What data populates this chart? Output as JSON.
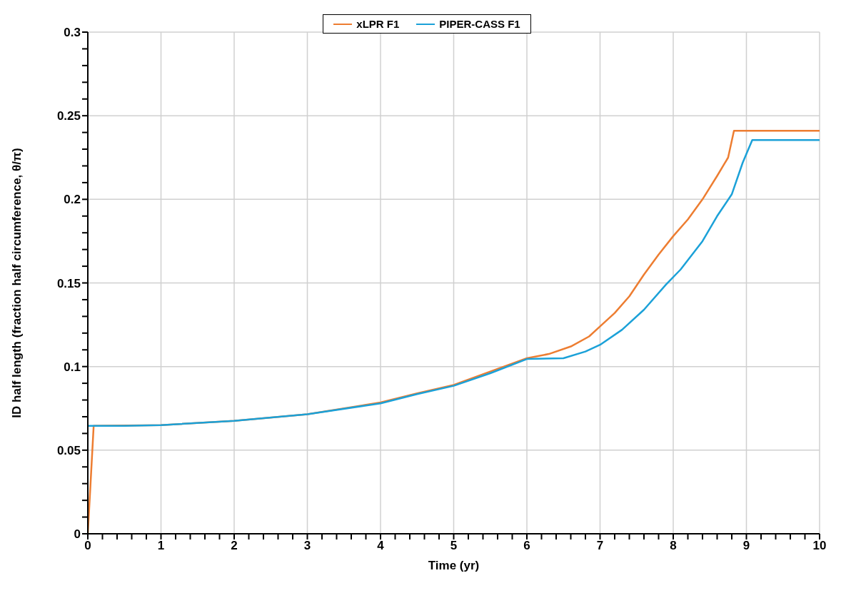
{
  "chart_data": {
    "type": "line",
    "xlabel": "Time (yr)",
    "ylabel": "ID half length (fraction half circumference, θ/π)",
    "xlim": [
      0,
      10
    ],
    "ylim": [
      0,
      0.3
    ],
    "xticks": [
      0,
      {
        "value": 0.2,
        "label": null
      },
      {
        "value": 0.4,
        "label": null
      },
      {
        "value": 0.6,
        "label": null
      },
      {
        "value": 0.8,
        "label": null
      },
      1,
      {
        "value": 1.2,
        "label": null
      },
      {
        "value": 1.4,
        "label": null
      },
      {
        "value": 1.6,
        "label": null
      },
      {
        "value": 1.8,
        "label": null
      },
      2,
      {
        "value": 2.2,
        "label": null
      },
      {
        "value": 2.4,
        "label": null
      },
      {
        "value": 2.6,
        "label": null
      },
      {
        "value": 2.8,
        "label": null
      },
      3,
      {
        "value": 3.2,
        "label": null
      },
      {
        "value": 3.4,
        "label": null
      },
      {
        "value": 3.6,
        "label": null
      },
      {
        "value": 3.8,
        "label": null
      },
      4,
      {
        "value": 4.2,
        "label": null
      },
      {
        "value": 4.4,
        "label": null
      },
      {
        "value": 4.6,
        "label": null
      },
      {
        "value": 4.8,
        "label": null
      },
      5,
      {
        "value": 5.2,
        "label": null
      },
      {
        "value": 5.4,
        "label": null
      },
      {
        "value": 5.6,
        "label": null
      },
      {
        "value": 5.8,
        "label": null
      },
      6,
      {
        "value": 6.2,
        "label": null
      },
      {
        "value": 6.4,
        "label": null
      },
      {
        "value": 6.6,
        "label": null
      },
      {
        "value": 6.8,
        "label": null
      },
      7,
      {
        "value": 7.2,
        "label": null
      },
      {
        "value": 7.4,
        "label": null
      },
      {
        "value": 7.6,
        "label": null
      },
      {
        "value": 7.8,
        "label": null
      },
      8,
      {
        "value": 8.2,
        "label": null
      },
      {
        "value": 8.4,
        "label": null
      },
      {
        "value": 8.6,
        "label": null
      },
      {
        "value": 8.8,
        "label": null
      },
      9,
      {
        "value": 9.2,
        "label": null
      },
      {
        "value": 9.4,
        "label": null
      },
      {
        "value": 9.6,
        "label": null
      },
      {
        "value": 9.8,
        "label": null
      },
      10
    ],
    "yticks": [
      0,
      {
        "value": 0.01,
        "label": null
      },
      {
        "value": 0.02,
        "label": null
      },
      {
        "value": 0.03,
        "label": null
      },
      {
        "value": 0.04,
        "label": null
      },
      0.05,
      {
        "value": 0.06,
        "label": null
      },
      {
        "value": 0.07,
        "label": null
      },
      {
        "value": 0.08,
        "label": null
      },
      {
        "value": 0.09,
        "label": null
      },
      0.1,
      {
        "value": 0.11,
        "label": null
      },
      {
        "value": 0.12,
        "label": null
      },
      {
        "value": 0.13,
        "label": null
      },
      {
        "value": 0.14,
        "label": null
      },
      0.15,
      {
        "value": 0.16,
        "label": null
      },
      {
        "value": 0.17,
        "label": null
      },
      {
        "value": 0.18,
        "label": null
      },
      {
        "value": 0.19,
        "label": null
      },
      0.2,
      {
        "value": 0.21,
        "label": null
      },
      {
        "value": 0.22,
        "label": null
      },
      {
        "value": 0.23,
        "label": null
      },
      {
        "value": 0.24,
        "label": null
      },
      0.25,
      {
        "value": 0.26,
        "label": null
      },
      {
        "value": 0.27,
        "label": null
      },
      {
        "value": 0.28,
        "label": null
      },
      {
        "value": 0.29,
        "label": null
      },
      0.3
    ],
    "grid": true,
    "legend": "top",
    "marker": "none",
    "line_style": "solid",
    "series": [
      {
        "name": "xLPR F1",
        "color": "#ed7d31",
        "x": [
          0,
          0.08,
          1,
          2,
          3,
          4,
          4.5,
          5,
          5.5,
          6,
          6.3,
          6.6,
          6.85,
          7,
          7.2,
          7.4,
          7.6,
          7.8,
          8,
          8.2,
          8.4,
          8.6,
          8.75,
          8.83,
          10
        ],
        "values": [
          0,
          0.0645,
          0.065,
          0.0675,
          0.0715,
          0.0785,
          0.084,
          0.089,
          0.097,
          0.105,
          0.1075,
          0.112,
          0.118,
          0.124,
          0.132,
          0.142,
          0.155,
          0.167,
          0.178,
          0.188,
          0.2,
          0.214,
          0.225,
          0.241,
          0.241
        ]
      },
      {
        "name": "PIPER-CASS F1",
        "color": "#1ba1d8",
        "x": [
          0,
          0.5,
          1,
          2,
          3,
          4,
          4.5,
          5,
          5.5,
          6,
          6.5,
          6.8,
          7,
          7.3,
          7.6,
          7.9,
          8.1,
          8.4,
          8.6,
          8.8,
          8.95,
          9.08,
          10
        ],
        "values": [
          0.0645,
          0.0645,
          0.065,
          0.0675,
          0.0715,
          0.078,
          0.0835,
          0.0885,
          0.096,
          0.1045,
          0.105,
          0.109,
          0.113,
          0.122,
          0.134,
          0.149,
          0.158,
          0.175,
          0.19,
          0.203,
          0.222,
          0.2355,
          0.2355
        ]
      }
    ]
  }
}
